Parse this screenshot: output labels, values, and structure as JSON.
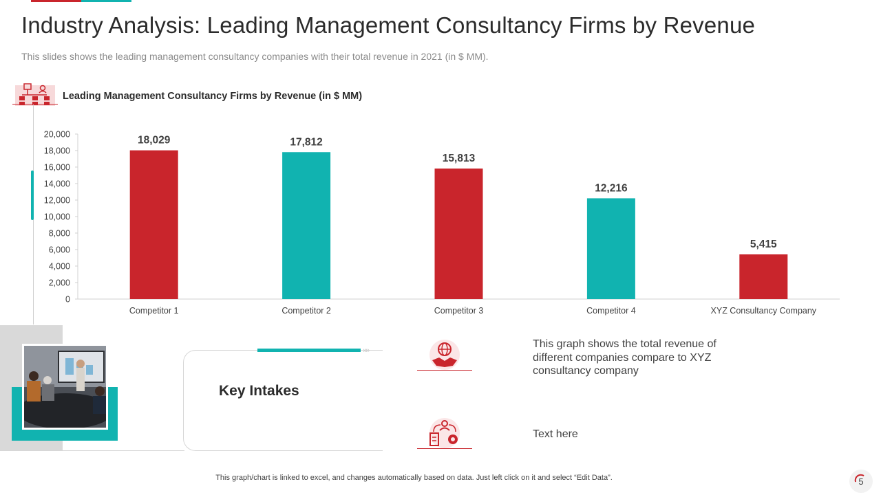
{
  "title": "Industry Analysis: Leading Management Consultancy Firms by Revenue",
  "subtitle": "This slides shows the leading  management consultancy companies with their total revenue in 2021 (in $ MM).",
  "chart_heading": "Leading Management Consultancy Firms by Revenue (in $ MM)",
  "colors": {
    "red": "#c9252c",
    "teal": "#11b3b0",
    "gray": "#d9d9d9"
  },
  "chart_data": {
    "type": "bar",
    "title": "Leading Management Consultancy Firms by Revenue (in $ MM)",
    "categories": [
      "Competitor 1",
      "Competitor 2",
      "Competitor 3",
      "Competitor 4",
      "XYZ Consultancy Company"
    ],
    "values": [
      18029,
      17812,
      15813,
      12216,
      5415
    ],
    "value_labels": [
      "18,029",
      "17,812",
      "15,813",
      "12,216",
      "5,415"
    ],
    "bar_colors": [
      "#c9252c",
      "#11b3b0",
      "#c9252c",
      "#11b3b0",
      "#c9252c"
    ],
    "ylim": [
      0,
      20000
    ],
    "yticks": [
      0,
      2000,
      4000,
      6000,
      8000,
      10000,
      12000,
      14000,
      16000,
      18000,
      20000
    ],
    "ytick_labels": [
      "0",
      "2,000",
      "4,000",
      "6,000",
      "8,000",
      "10,000",
      "12,000",
      "14,000",
      "16,000",
      "18,000",
      "20,000"
    ],
    "xlabel": "",
    "ylabel": "",
    "grid": false,
    "legend": "none"
  },
  "key_intakes": {
    "heading": "Key Intakes",
    "item1_text": "This graph shows the total revenue of different companies compare to XYZ consultancy company",
    "item1_icon": "globe-handshake-icon",
    "item2_text": "Text here",
    "item2_icon": "team-process-icon"
  },
  "footnote": "This graph/chart is linked to excel, and changes automatically based on data. Just left click on it and select “Edit Data”.",
  "page_number": "5"
}
